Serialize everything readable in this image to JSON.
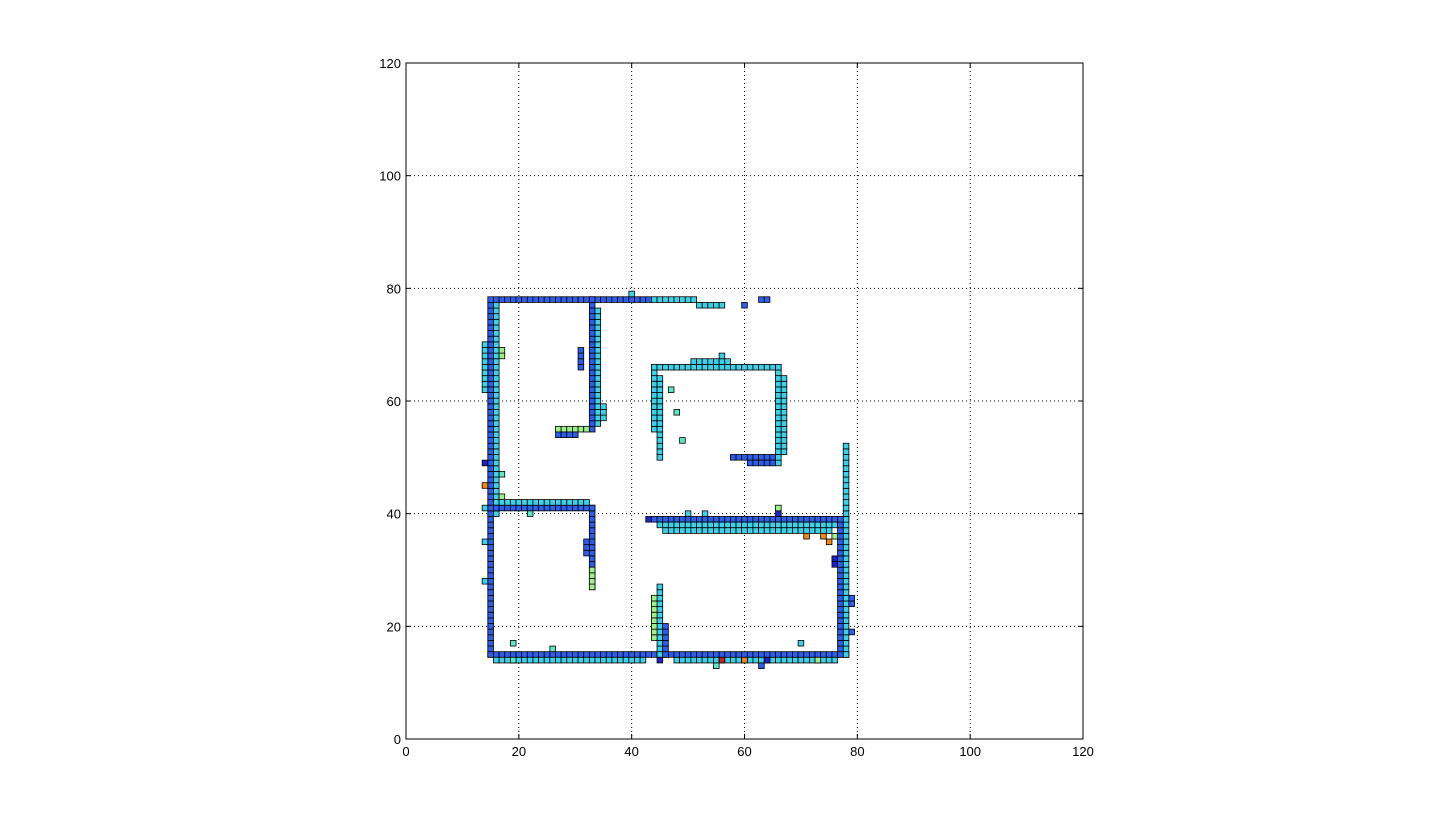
{
  "chart_data": {
    "type": "heatmap",
    "title": "",
    "xlabel": "",
    "ylabel": "",
    "xlim": [
      0,
      120
    ],
    "ylim": [
      0,
      120
    ],
    "xticks": [
      0,
      20,
      40,
      60,
      80,
      100,
      120
    ],
    "yticks": [
      0,
      20,
      40,
      60,
      80,
      100,
      120
    ],
    "xtick_labels": [
      "0",
      "20",
      "40",
      "60",
      "80",
      "100",
      "120"
    ],
    "ytick_labels": [
      "0",
      "20",
      "40",
      "60",
      "80",
      "100",
      "120"
    ],
    "grid": true,
    "colormap": "jet",
    "colors": {
      "blue": "#2e5ee8",
      "cyan": "#3fd0e8",
      "aqua": "#5ee6c8",
      "green": "#9ef08a",
      "navy": "#1c22c8",
      "orange": "#f08a1c",
      "red": "#c81e1e"
    },
    "cell_size": 1,
    "segments": [
      {
        "x0": 15,
        "x1": 43,
        "y": 78,
        "color": "blue"
      },
      {
        "x0": 44,
        "x1": 51,
        "y": 78,
        "color": "cyan"
      },
      {
        "x0": 52,
        "x1": 56,
        "y": 77,
        "color": "cyan"
      },
      {
        "x0": 63,
        "x1": 64,
        "y": 78,
        "color": "blue"
      },
      {
        "x": 15,
        "y0": 15,
        "y1": 77,
        "color": "blue"
      },
      {
        "x": 16,
        "y0": 40,
        "y1": 77,
        "color": "cyan"
      },
      {
        "x": 14,
        "y0": 62,
        "y1": 70,
        "color": "cyan"
      },
      {
        "x": 17,
        "y0": 68,
        "y1": 69,
        "color": "green"
      },
      {
        "x0": 15,
        "x1": 78,
        "y": 15,
        "color": "blue"
      },
      {
        "x0": 16,
        "x1": 42,
        "y": 14,
        "color": "cyan"
      },
      {
        "x0": 48,
        "x1": 76,
        "y": 14,
        "color": "cyan"
      },
      {
        "x0": 15,
        "x1": 33,
        "y": 41,
        "color": "blue"
      },
      {
        "x0": 17,
        "x1": 32,
        "y": 42,
        "color": "cyan"
      },
      {
        "x": 33,
        "y0": 27,
        "y1": 41,
        "color": "blue"
      },
      {
        "x": 33,
        "y0": 27,
        "y1": 30,
        "color": "green"
      },
      {
        "x": 32,
        "y0": 33,
        "y1": 35,
        "color": "blue"
      },
      {
        "x": 33,
        "y0": 55,
        "y1": 78,
        "color": "blue"
      },
      {
        "x": 34,
        "y0": 56,
        "y1": 76,
        "color": "cyan"
      },
      {
        "x": 35,
        "y0": 57,
        "y1": 59,
        "color": "cyan"
      },
      {
        "x": 31,
        "y0": 66,
        "y1": 69,
        "color": "blue"
      },
      {
        "x0": 27,
        "x1": 32,
        "y": 55,
        "color": "green"
      },
      {
        "x0": 27,
        "x1": 30,
        "y": 54,
        "color": "blue"
      },
      {
        "x": 45,
        "y0": 15,
        "y1": 27,
        "color": "cyan"
      },
      {
        "x": 44,
        "y0": 18,
        "y1": 25,
        "color": "green"
      },
      {
        "x": 46,
        "y0": 15,
        "y1": 20,
        "color": "blue"
      },
      {
        "x0": 44,
        "x1": 78,
        "y": 39,
        "color": "blue"
      },
      {
        "x0": 45,
        "x1": 77,
        "y": 38,
        "color": "cyan"
      },
      {
        "x0": 46,
        "x1": 75,
        "y": 37,
        "color": "cyan"
      },
      {
        "x": 78,
        "y0": 15,
        "y1": 52,
        "color": "cyan"
      },
      {
        "x": 77,
        "y0": 15,
        "y1": 39,
        "color": "blue"
      },
      {
        "x": 79,
        "y0": 24,
        "y1": 25,
        "color": "blue"
      },
      {
        "x": 44,
        "y0": 55,
        "y1": 66,
        "color": "cyan"
      },
      {
        "x": 45,
        "y0": 50,
        "y1": 64,
        "color": "cyan"
      },
      {
        "x0": 45,
        "x1": 66,
        "y": 66,
        "color": "cyan"
      },
      {
        "x0": 51,
        "x1": 57,
        "y": 67,
        "color": "cyan"
      },
      {
        "x": 66,
        "y0": 49,
        "y1": 66,
        "color": "cyan"
      },
      {
        "x": 67,
        "y0": 51,
        "y1": 64,
        "color": "cyan"
      },
      {
        "x0": 58,
        "x1": 65,
        "y": 50,
        "color": "blue"
      },
      {
        "x0": 61,
        "x1": 65,
        "y": 49,
        "color": "blue"
      }
    ],
    "cells": [
      {
        "x": 14,
        "y": 49,
        "color": "navy"
      },
      {
        "x": 14,
        "y": 45,
        "color": "orange"
      },
      {
        "x": 14,
        "y": 41,
        "color": "cyan"
      },
      {
        "x": 14,
        "y": 35,
        "color": "cyan"
      },
      {
        "x": 14,
        "y": 28,
        "color": "cyan"
      },
      {
        "x": 17,
        "y": 47,
        "color": "aqua"
      },
      {
        "x": 17,
        "y": 43,
        "color": "green"
      },
      {
        "x": 19,
        "y": 17,
        "color": "aqua"
      },
      {
        "x": 19,
        "y": 14,
        "color": "aqua"
      },
      {
        "x": 26,
        "y": 16,
        "color": "aqua"
      },
      {
        "x": 22,
        "y": 40,
        "color": "aqua"
      },
      {
        "x": 40,
        "y": 79,
        "color": "cyan"
      },
      {
        "x": 60,
        "y": 77,
        "color": "blue"
      },
      {
        "x": 47,
        "y": 62,
        "color": "aqua"
      },
      {
        "x": 48,
        "y": 58,
        "color": "aqua"
      },
      {
        "x": 49,
        "y": 53,
        "color": "aqua"
      },
      {
        "x": 56,
        "y": 68,
        "color": "cyan"
      },
      {
        "x": 43,
        "y": 39,
        "color": "navy"
      },
      {
        "x": 50,
        "y": 40,
        "color": "cyan"
      },
      {
        "x": 53,
        "y": 40,
        "color": "cyan"
      },
      {
        "x": 66,
        "y": 41,
        "color": "green"
      },
      {
        "x": 66,
        "y": 40,
        "color": "navy"
      },
      {
        "x": 71,
        "y": 36,
        "color": "orange"
      },
      {
        "x": 75,
        "y": 35,
        "color": "orange"
      },
      {
        "x": 74,
        "y": 36,
        "color": "orange"
      },
      {
        "x": 76,
        "y": 36,
        "color": "green"
      },
      {
        "x": 76,
        "y": 31,
        "color": "navy"
      },
      {
        "x": 76,
        "y": 32,
        "color": "navy"
      },
      {
        "x": 79,
        "y": 19,
        "color": "blue"
      },
      {
        "x": 70,
        "y": 17,
        "color": "cyan"
      },
      {
        "x": 45,
        "y": 14,
        "color": "navy"
      },
      {
        "x": 55,
        "y": 13,
        "color": "aqua"
      },
      {
        "x": 56,
        "y": 14,
        "color": "red"
      },
      {
        "x": 60,
        "y": 14,
        "color": "orange"
      },
      {
        "x": 63,
        "y": 13,
        "color": "blue"
      },
      {
        "x": 64,
        "y": 14,
        "color": "navy"
      },
      {
        "x": 73,
        "y": 14,
        "color": "green"
      }
    ]
  }
}
